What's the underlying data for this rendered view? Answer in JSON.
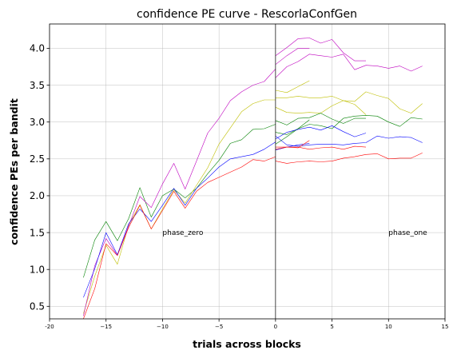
{
  "chart_data": {
    "type": "line",
    "title": "confidence PE curve - RescorlaConfGen",
    "xlabel": "trials across blocks",
    "ylabel": "confidence PEs per bandit",
    "xlim": [
      -20,
      15
    ],
    "ylim": [
      0.33,
      4.33
    ],
    "xticks": [
      "-20",
      "−15",
      "−10",
      "−5",
      "0",
      "5",
      "10",
      "15"
    ],
    "yticks": [
      "0.5",
      "1.0",
      "1.5",
      "2.0",
      "2.5",
      "3.0",
      "3.5",
      "4.0"
    ],
    "grid": true,
    "divider_x": 0,
    "annotations": [
      {
        "text": "phase_zero",
        "x": -10,
        "y": 1.5
      },
      {
        "text": "phase_one",
        "x": 10,
        "y": 1.5
      }
    ],
    "series": [
      {
        "color": "#008000",
        "x": [
          -17,
          -16,
          -15,
          -14,
          -13,
          -12,
          -11,
          -10,
          -9,
          -8,
          -7,
          -6,
          -5,
          -4,
          -3,
          -2,
          -1,
          0
        ],
        "values": [
          0.89,
          1.4,
          1.65,
          1.39,
          1.69,
          2.11,
          1.71,
          2.0,
          2.09,
          1.97,
          2.1,
          2.3,
          2.48,
          2.71,
          2.76,
          2.9,
          2.91,
          2.97
        ]
      },
      {
        "color": "#bfbf00",
        "x": [
          -17,
          -16,
          -15,
          -14,
          -13,
          -12,
          -11,
          -10,
          -9,
          -8,
          -7,
          -6,
          -5,
          -4,
          -3,
          -2,
          -1,
          0
        ],
        "values": [
          0.4,
          0.91,
          1.33,
          1.07,
          1.6,
          1.88,
          1.55,
          1.82,
          2.08,
          1.9,
          2.14,
          2.38,
          2.7,
          2.92,
          3.14,
          3.25,
          3.3,
          3.3
        ]
      },
      {
        "color": "#bf00bf",
        "x": [
          -17,
          -16,
          -15,
          -14,
          -13,
          -12,
          -11,
          -10,
          -9,
          -8,
          -7,
          -6,
          -5,
          -4,
          -3,
          -2,
          -1,
          0
        ],
        "values": [
          0.37,
          1.05,
          1.42,
          1.19,
          1.59,
          1.99,
          1.84,
          2.16,
          2.44,
          2.09,
          2.47,
          2.85,
          3.05,
          3.29,
          3.41,
          3.5,
          3.55,
          3.72
        ]
      },
      {
        "color": "#0000ff",
        "x": [
          -17,
          -16,
          -15,
          -14,
          -13,
          -12,
          -11,
          -10,
          -9,
          -8,
          -7,
          -6,
          -5,
          -4,
          -3,
          -2,
          -1,
          0
        ],
        "values": [
          0.62,
          1.01,
          1.5,
          1.2,
          1.62,
          1.82,
          1.65,
          1.87,
          2.1,
          1.87,
          2.1,
          2.24,
          2.39,
          2.5,
          2.53,
          2.56,
          2.63,
          2.73
        ]
      },
      {
        "color": "#ff0000",
        "x": [
          -17,
          -16,
          -15,
          -14,
          -13,
          -12,
          -11,
          -10,
          -9,
          -8,
          -7,
          -6,
          -5,
          -4,
          -3,
          -2,
          -1,
          0
        ],
        "values": [
          0.33,
          0.74,
          1.35,
          1.19,
          1.57,
          1.87,
          1.55,
          1.8,
          2.06,
          1.83,
          2.06,
          2.18,
          2.25,
          2.32,
          2.39,
          2.49,
          2.47,
          2.53
        ]
      },
      {
        "color": "#bf00bf",
        "x": [
          0,
          1,
          2,
          3
        ],
        "values": [
          3.78,
          3.9,
          4.0,
          4.0
        ]
      },
      {
        "color": "#bf00bf",
        "x": [
          0,
          1,
          2,
          3,
          4,
          5,
          6,
          7,
          8
        ],
        "values": [
          3.9,
          4.01,
          4.13,
          4.14,
          4.07,
          4.12,
          3.94,
          3.83,
          3.83
        ]
      },
      {
        "color": "#bf00bf",
        "x": [
          0,
          1,
          2,
          3,
          4,
          5,
          6,
          7,
          8,
          9,
          10,
          11,
          12,
          13
        ],
        "values": [
          3.6,
          3.75,
          3.82,
          3.92,
          3.9,
          3.88,
          3.92,
          3.71,
          3.77,
          3.76,
          3.73,
          3.76,
          3.69,
          3.76
        ]
      },
      {
        "color": "#bfbf00",
        "x": [
          0,
          1,
          2,
          3
        ],
        "values": [
          3.43,
          3.4,
          3.48,
          3.56
        ]
      },
      {
        "color": "#bfbf00",
        "x": [
          0,
          1,
          2,
          3,
          4,
          5,
          6,
          7,
          8
        ],
        "values": [
          3.2,
          3.13,
          3.12,
          3.13,
          3.12,
          3.22,
          3.29,
          3.24,
          3.1
        ]
      },
      {
        "color": "#bfbf00",
        "x": [
          0,
          1,
          2,
          3,
          4,
          5,
          6,
          7,
          8,
          9,
          10,
          11,
          12,
          13
        ],
        "values": [
          3.33,
          3.33,
          3.35,
          3.33,
          3.33,
          3.35,
          3.29,
          3.28,
          3.41,
          3.36,
          3.32,
          3.18,
          3.12,
          3.25
        ]
      },
      {
        "color": "#008000",
        "x": [
          0,
          1,
          2,
          3
        ],
        "values": [
          2.86,
          2.83,
          2.91,
          3.03
        ]
      },
      {
        "color": "#008000",
        "x": [
          0,
          1,
          2,
          3,
          4,
          5,
          6,
          7,
          8
        ],
        "values": [
          3.02,
          2.96,
          3.05,
          3.06,
          3.12,
          3.04,
          2.98,
          3.05,
          3.05
        ]
      },
      {
        "color": "#008000",
        "x": [
          0,
          1,
          2,
          3,
          4,
          5,
          6,
          7,
          8,
          9,
          10,
          11,
          12,
          13
        ],
        "values": [
          2.7,
          2.8,
          2.91,
          2.97,
          2.95,
          2.91,
          3.05,
          3.08,
          3.09,
          3.08,
          3.0,
          2.94,
          3.06,
          3.04
        ]
      },
      {
        "color": "#0000ff",
        "x": [
          0,
          1,
          2,
          3
        ],
        "values": [
          2.62,
          2.66,
          2.69,
          2.71
        ]
      },
      {
        "color": "#0000ff",
        "x": [
          0,
          1,
          2,
          3,
          4,
          5,
          6,
          7,
          8
        ],
        "values": [
          2.77,
          2.86,
          2.9,
          2.93,
          2.89,
          2.95,
          2.87,
          2.8,
          2.85
        ]
      },
      {
        "color": "#0000ff",
        "x": [
          0,
          1,
          2,
          3,
          4,
          5,
          6,
          7,
          8,
          9,
          10,
          11,
          12,
          13
        ],
        "values": [
          2.81,
          2.69,
          2.67,
          2.69,
          2.7,
          2.7,
          2.69,
          2.71,
          2.72,
          2.81,
          2.78,
          2.8,
          2.79,
          2.72
        ]
      },
      {
        "color": "#ff0000",
        "x": [
          0,
          1,
          2,
          3
        ],
        "values": [
          2.66,
          2.66,
          2.65,
          2.75
        ]
      },
      {
        "color": "#ff0000",
        "x": [
          0,
          1,
          2,
          3,
          4,
          5,
          6,
          7,
          8
        ],
        "values": [
          2.63,
          2.66,
          2.66,
          2.63,
          2.65,
          2.66,
          2.63,
          2.67,
          2.66
        ]
      },
      {
        "color": "#ff0000",
        "x": [
          0,
          1,
          2,
          3,
          4,
          5,
          6,
          7,
          8,
          9,
          10,
          11,
          12,
          13
        ],
        "values": [
          2.47,
          2.44,
          2.46,
          2.47,
          2.46,
          2.47,
          2.51,
          2.53,
          2.56,
          2.57,
          2.5,
          2.51,
          2.51,
          2.58
        ]
      }
    ]
  }
}
